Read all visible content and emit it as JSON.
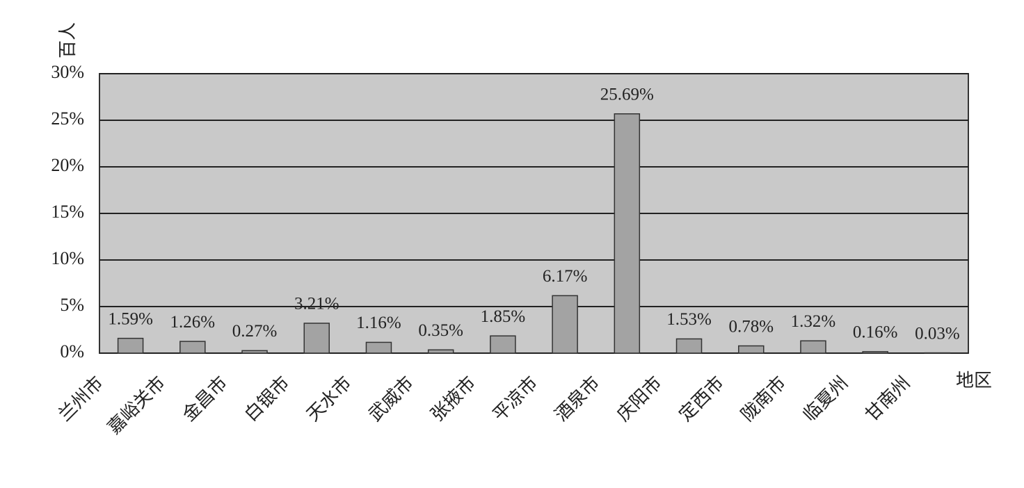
{
  "chart_data": {
    "type": "bar",
    "y_label": "百人",
    "x_label": "地区",
    "categories": [
      "兰州市",
      "嘉峪关市",
      "金昌市",
      "白银市",
      "天水市",
      "武威市",
      "张掖市",
      "平凉市",
      "酒泉市",
      "庆阳市",
      "定西市",
      "陇南市",
      "临夏州",
      "甘南州"
    ],
    "values": [
      1.59,
      1.26,
      0.27,
      3.21,
      1.16,
      0.35,
      1.85,
      6.17,
      25.69,
      1.53,
      0.78,
      1.32,
      0.16,
      0.03
    ],
    "value_labels": [
      "1.59%",
      "1.26%",
      "0.27%",
      "3.21%",
      "1.16%",
      "0.35%",
      "1.85%",
      "6.17%",
      "25.69%",
      "1.53%",
      "0.78%",
      "1.32%",
      "0.16%",
      "0.03%"
    ],
    "color": "#a3a3a3",
    "ylim": [
      0,
      30
    ],
    "yticks": [
      {
        "value": 0,
        "label": "0%"
      },
      {
        "value": 5,
        "label": "5%"
      },
      {
        "value": 10,
        "label": "10%"
      },
      {
        "value": 15,
        "label": "15%"
      },
      {
        "value": 20,
        "label": "20%"
      },
      {
        "value": 25,
        "label": "25%"
      },
      {
        "value": 30,
        "label": "30%"
      }
    ],
    "grid": true
  }
}
